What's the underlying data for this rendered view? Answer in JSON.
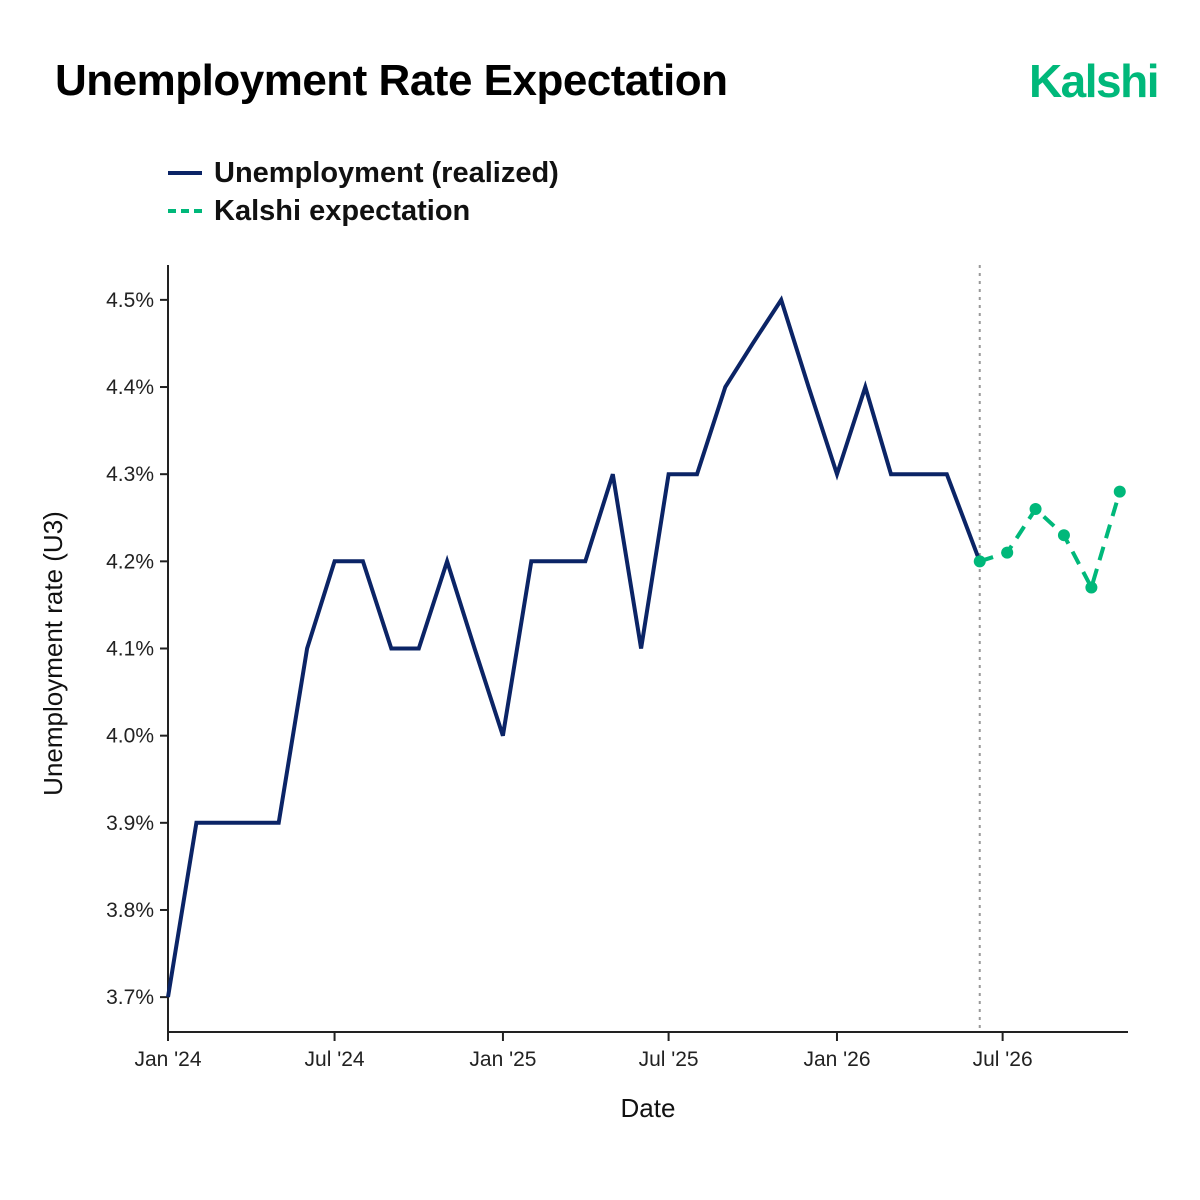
{
  "header": {
    "title": "Unemployment Rate Expectation",
    "brand": "Kalshi"
  },
  "colors": {
    "realized": "#0b2466",
    "expectation": "#00b87a",
    "brand": "#00b87a",
    "divider": "#999999",
    "axis": "#222222"
  },
  "chart_data": {
    "type": "line",
    "xlabel": "Date",
    "ylabel": "Unemployment rate (U3)",
    "ylim": [
      3.66,
      4.54
    ],
    "xlim": [
      "2024-01-01",
      "2026-11-15"
    ],
    "grid": false,
    "legend_placement": "top-left",
    "y_ticks": [
      {
        "value": 3.7,
        "label": "3.7%"
      },
      {
        "value": 3.8,
        "label": "3.8%"
      },
      {
        "value": 3.9,
        "label": "3.9%"
      },
      {
        "value": 4.0,
        "label": "4.0%"
      },
      {
        "value": 4.1,
        "label": "4.1%"
      },
      {
        "value": 4.2,
        "label": "4.2%"
      },
      {
        "value": 4.3,
        "label": "4.3%"
      },
      {
        "value": 4.4,
        "label": "4.4%"
      },
      {
        "value": 4.5,
        "label": "4.5%"
      }
    ],
    "x_ticks": [
      {
        "value": "2024-01-01",
        "label": "Jan '24"
      },
      {
        "value": "2024-07-01",
        "label": "Jul '24"
      },
      {
        "value": "2025-01-01",
        "label": "Jan '25"
      },
      {
        "value": "2025-07-01",
        "label": "Jul '25"
      },
      {
        "value": "2026-01-01",
        "label": "Jan '26"
      },
      {
        "value": "2026-07-01",
        "label": "Jul '26"
      }
    ],
    "divider_date": "2026-06-06",
    "series": [
      {
        "name": "Unemployment (realized)",
        "style": "solid",
        "points": [
          {
            "x": "2024-01-01",
            "y": 3.7
          },
          {
            "x": "2024-02-01",
            "y": 3.9
          },
          {
            "x": "2024-03-01",
            "y": 3.9
          },
          {
            "x": "2024-04-01",
            "y": 3.9
          },
          {
            "x": "2024-05-01",
            "y": 3.9
          },
          {
            "x": "2024-06-01",
            "y": 4.1
          },
          {
            "x": "2024-07-01",
            "y": 4.2
          },
          {
            "x": "2024-08-01",
            "y": 4.2
          },
          {
            "x": "2024-09-01",
            "y": 4.1
          },
          {
            "x": "2024-10-01",
            "y": 4.1
          },
          {
            "x": "2024-11-01",
            "y": 4.2
          },
          {
            "x": "2024-12-01",
            "y": 4.1
          },
          {
            "x": "2025-01-01",
            "y": 4.0
          },
          {
            "x": "2025-02-01",
            "y": 4.2
          },
          {
            "x": "2025-03-01",
            "y": 4.2
          },
          {
            "x": "2025-04-01",
            "y": 4.2
          },
          {
            "x": "2025-05-01",
            "y": 4.3
          },
          {
            "x": "2025-06-01",
            "y": 4.1
          },
          {
            "x": "2025-07-01",
            "y": 4.3
          },
          {
            "x": "2025-08-01",
            "y": 4.3
          },
          {
            "x": "2025-09-01",
            "y": 4.4
          },
          {
            "x": "2025-10-01",
            "y": 4.45
          },
          {
            "x": "2025-11-01",
            "y": 4.5
          },
          {
            "x": "2025-12-01",
            "y": 4.4
          },
          {
            "x": "2026-01-01",
            "y": 4.3
          },
          {
            "x": "2026-02-01",
            "y": 4.4
          },
          {
            "x": "2026-03-01",
            "y": 4.3
          },
          {
            "x": "2026-04-01",
            "y": 4.3
          },
          {
            "x": "2026-05-01",
            "y": 4.3
          },
          {
            "x": "2026-06-06",
            "y": 4.2
          }
        ]
      },
      {
        "name": "Kalshi expectation",
        "style": "dashed",
        "markers": true,
        "points": [
          {
            "x": "2026-06-06",
            "y": 4.2
          },
          {
            "x": "2026-07-06",
            "y": 4.21
          },
          {
            "x": "2026-08-06",
            "y": 4.26
          },
          {
            "x": "2026-09-06",
            "y": 4.23
          },
          {
            "x": "2026-10-06",
            "y": 4.17
          },
          {
            "x": "2026-11-06",
            "y": 4.28
          }
        ]
      }
    ]
  }
}
